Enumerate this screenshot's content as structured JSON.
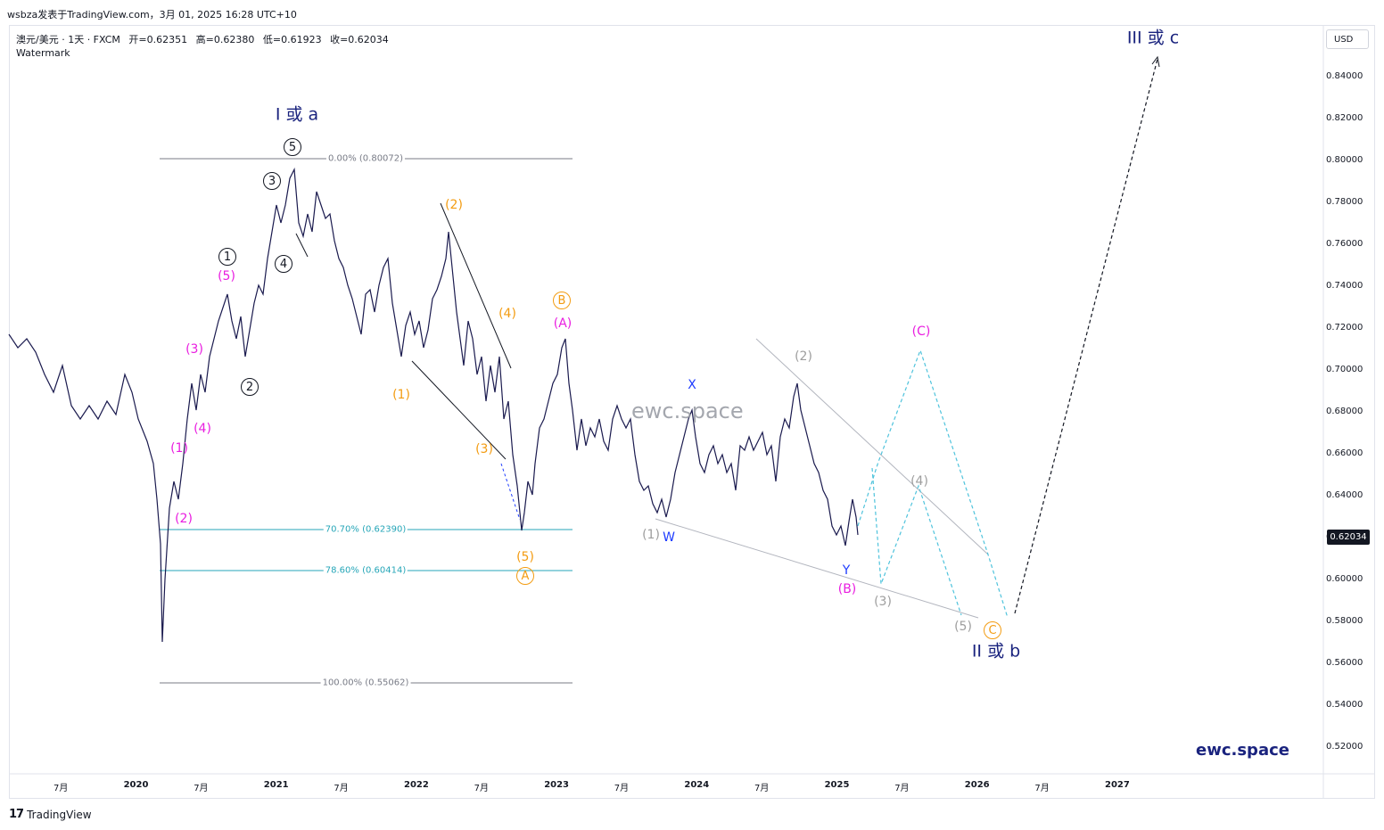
{
  "header": {
    "publish_line": "wsbza发表于TradingView.com，3月 01, 2025 16:28 UTC+10"
  },
  "legend": {
    "symbol": "澳元/美元 · 1天 · FXCM",
    "open": "开=0.62351",
    "high": "高=0.62380",
    "low": "低=0.61923",
    "close": "收=0.62034",
    "watermark": "Watermark"
  },
  "price_axis": {
    "currency": "USD",
    "labels": [
      "0.84000",
      "0.82000",
      "0.80000",
      "0.78000",
      "0.76000",
      "0.74000",
      "0.72000",
      "0.70000",
      "0.68000",
      "0.66000",
      "0.64000",
      "0.62000",
      "0.60000",
      "0.58000",
      "0.56000",
      "0.54000",
      "0.52000"
    ],
    "last_price": "0.62034"
  },
  "time_axis": {
    "labels": [
      {
        "text": "7月",
        "bold": false
      },
      {
        "text": "2020",
        "bold": true
      },
      {
        "text": "7月",
        "bold": false
      },
      {
        "text": "2021",
        "bold": true
      },
      {
        "text": "7月",
        "bold": false
      },
      {
        "text": "2022",
        "bold": true
      },
      {
        "text": "7月",
        "bold": false
      },
      {
        "text": "2023",
        "bold": true
      },
      {
        "text": "7月",
        "bold": false
      },
      {
        "text": "2024",
        "bold": true
      },
      {
        "text": "7月",
        "bold": false
      },
      {
        "text": "2025",
        "bold": true
      },
      {
        "text": "7月",
        "bold": false
      },
      {
        "text": "2026",
        "bold": true
      },
      {
        "text": "7月",
        "bold": false
      },
      {
        "text": "2027",
        "bold": true
      }
    ]
  },
  "fibonacci": {
    "levels": [
      {
        "label": "0.00% (0.80072)",
        "color": "#787b86"
      },
      {
        "label": "70.70% (0.62390)",
        "color": "#26a6b8"
      },
      {
        "label": "78.60% (0.60414)",
        "color": "#26a6b8"
      },
      {
        "label": "100.00% (0.55062)",
        "color": "#787b86"
      }
    ]
  },
  "wave_labels": {
    "major": {
      "top_left": "I 或 a",
      "top_right": "III 或 c",
      "bottom_right": "II 或 b"
    },
    "black_circled": [
      "5",
      "3",
      "1",
      "4",
      "2"
    ],
    "magenta": [
      "(5)",
      "(3)",
      "(1)",
      "(4)",
      "(2)",
      "(A)",
      "(B)",
      "(C)"
    ],
    "orange": [
      "(2)",
      "(4)",
      "(1)",
      "(3)",
      "(5)"
    ],
    "orange_circled": [
      "B",
      "A",
      "C"
    ],
    "gray": [
      "(1)",
      "(2)",
      "(3)",
      "(4)",
      "(5)"
    ],
    "blue": [
      "X",
      "W",
      "Y"
    ]
  },
  "colors": {
    "magenta": "#e91ee0",
    "orange": "#f39c12",
    "gray": "#9e9e9e",
    "navy": "#1a237e",
    "blue": "#1e3cff",
    "price": "#1a1a4e",
    "cyan": "#4fc3dc"
  },
  "branding": {
    "site": "ewc.space",
    "chart_watermark": "ewc.space",
    "tv_name": "TradingView",
    "tv_mark": "17"
  }
}
